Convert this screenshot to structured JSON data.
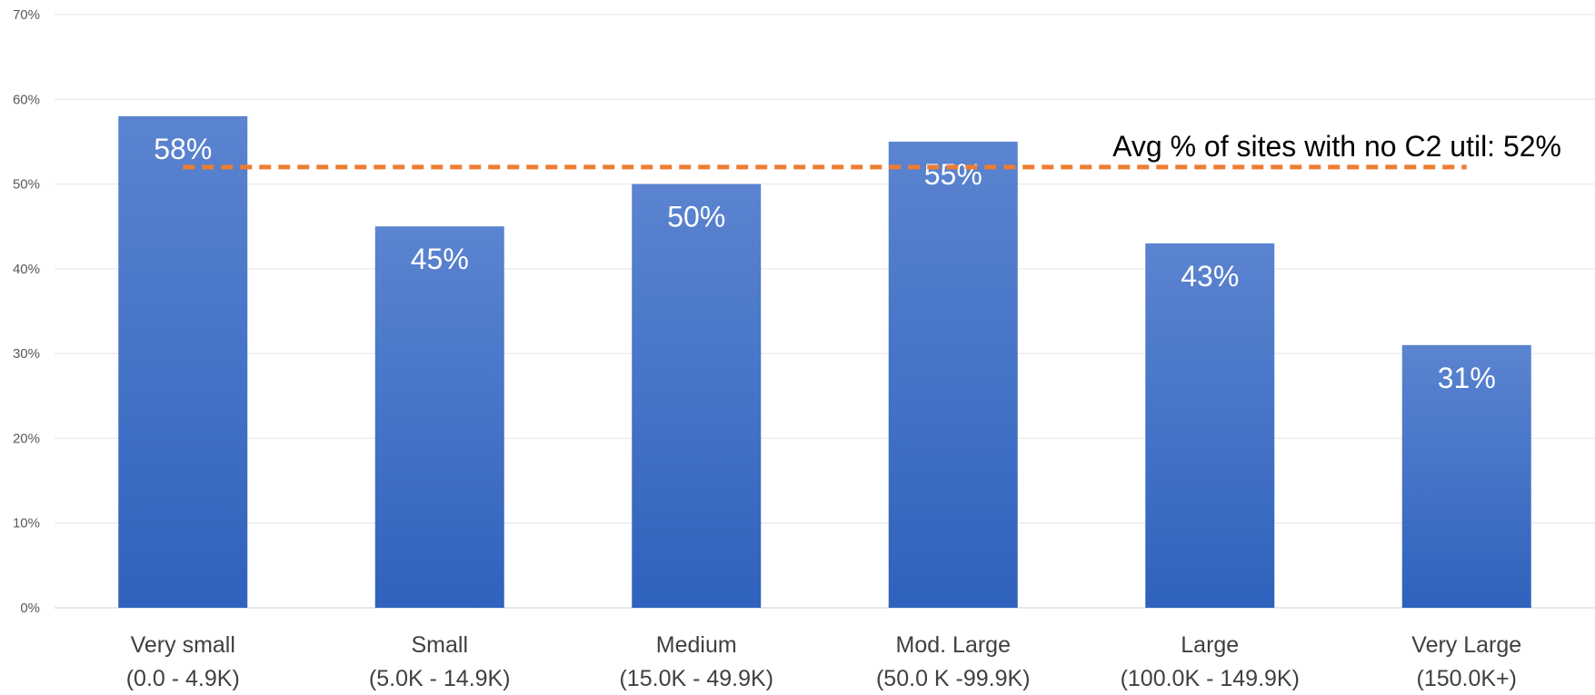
{
  "chart_data": {
    "type": "bar",
    "categories": [
      [
        "Very small",
        "(0.0 - 4.9K)"
      ],
      [
        "Small",
        "(5.0K - 14.9K)"
      ],
      [
        "Medium",
        "(15.0K - 49.9K)"
      ],
      [
        "Mod. Large",
        "(50.0 K -99.9K)"
      ],
      [
        "Large",
        "(100.0K - 149.9K)"
      ],
      [
        "Very Large",
        "(150.0K+)"
      ]
    ],
    "values": [
      58,
      45,
      50,
      55,
      43,
      31
    ],
    "data_labels": [
      "58%",
      "45%",
      "50%",
      "55%",
      "43%",
      "31%"
    ],
    "ylim": [
      0,
      70
    ],
    "yticks": [
      0,
      10,
      20,
      30,
      40,
      50,
      60,
      70
    ],
    "ytick_labels": [
      "0%",
      "10%",
      "20%",
      "30%",
      "40%",
      "50%",
      "60%",
      "70%"
    ],
    "grid": true,
    "bar_color_top": "#5b84d0",
    "bar_color_bottom": "#2f62bd",
    "reference_line": {
      "value": 52,
      "label": "Avg % of sites with no C2 util: 52%",
      "color": "#ed7d31",
      "style": "dashed"
    }
  }
}
